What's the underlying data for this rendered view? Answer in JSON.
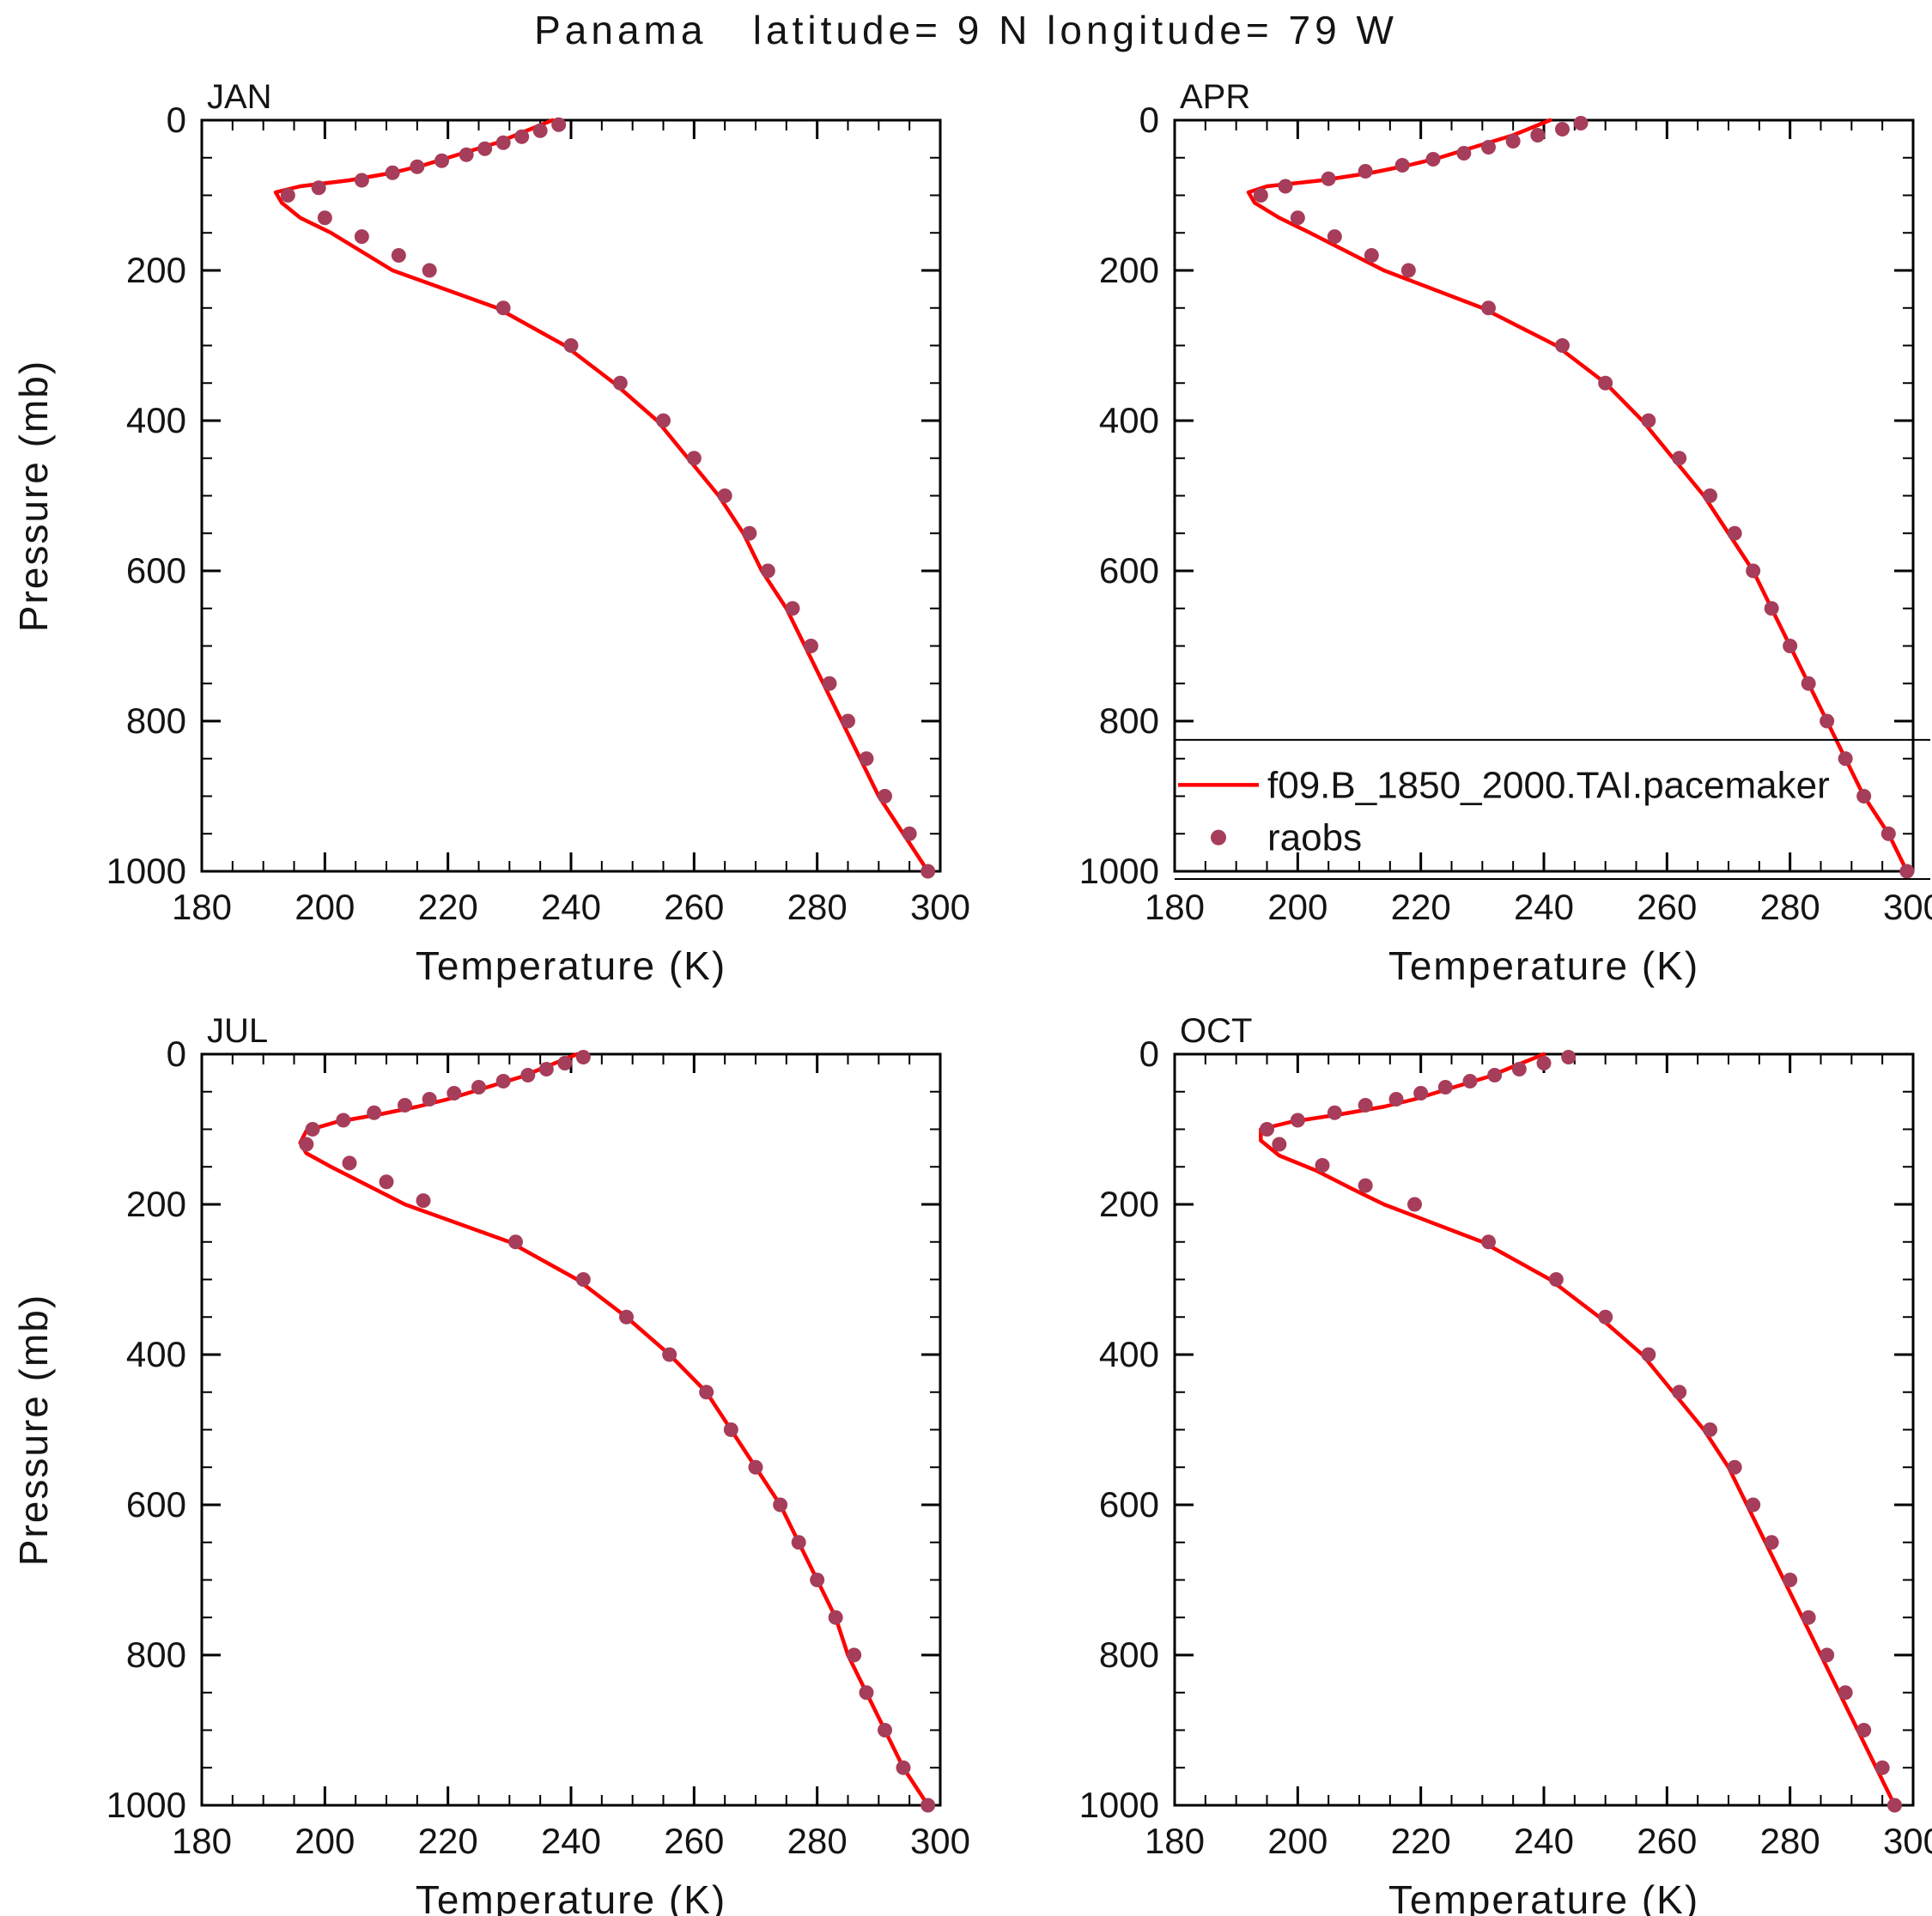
{
  "chart_data": {
    "type": "line+scatter",
    "title": "Panama   latitude= 9 N longitude= 79 W",
    "xlabel": "Temperature (K)",
    "ylabel": "Pressure (mb)",
    "xlim": [
      180,
      300
    ],
    "ylim": [
      0,
      1000
    ],
    "y_inverted": true,
    "xticks": [
      180,
      200,
      220,
      240,
      260,
      280,
      300
    ],
    "yticks": [
      0,
      200,
      400,
      600,
      800,
      1000
    ],
    "x_minor_step": 5,
    "y_minor_step": 50,
    "grid": false,
    "colors": {
      "model_line": "#ff0000",
      "obs_dot": "#a63d5a",
      "axis": "#000000",
      "text": "#141414"
    },
    "legend": {
      "panel": "APR",
      "position": "inside-bottom",
      "entries": [
        {
          "label": "f09.B_1850_2000.TAI.pacemaker",
          "type": "line",
          "color": "#ff0000"
        },
        {
          "label": "raobs",
          "type": "dot",
          "color": "#a63d5a"
        }
      ]
    },
    "panels": [
      {
        "month": "JAN",
        "model": {
          "p": [
            0,
            10,
            20,
            30,
            40,
            50,
            60,
            70,
            80,
            88,
            96,
            110,
            130,
            150,
            175,
            200,
            250,
            300,
            350,
            400,
            450,
            500,
            550,
            600,
            650,
            700,
            750,
            800,
            850,
            900,
            950,
            1000
          ],
          "t": [
            237,
            234,
            231,
            228,
            224,
            220,
            216,
            211,
            204,
            196,
            192,
            193,
            196,
            201,
            206,
            211,
            228,
            239,
            247,
            254,
            259,
            264,
            268,
            271,
            275,
            278,
            281,
            284,
            287,
            290,
            294,
            298
          ]
        },
        "obs": {
          "p": [
            6,
            14,
            22,
            30,
            38,
            46,
            54,
            62,
            70,
            80,
            90,
            100,
            130,
            155,
            180,
            200,
            250,
            300,
            350,
            400,
            450,
            500,
            550,
            600,
            650,
            700,
            750,
            800,
            850,
            900,
            950,
            1000
          ],
          "t": [
            238,
            235,
            232,
            229,
            226,
            223,
            219,
            215,
            211,
            206,
            199,
            194,
            200,
            206,
            212,
            217,
            229,
            240,
            248,
            255,
            260,
            265,
            269,
            272,
            276,
            279,
            282,
            285,
            288,
            291,
            295,
            298
          ]
        }
      },
      {
        "month": "APR",
        "model": {
          "p": [
            0,
            10,
            20,
            30,
            40,
            50,
            60,
            70,
            80,
            88,
            96,
            110,
            130,
            150,
            175,
            200,
            250,
            300,
            350,
            400,
            450,
            500,
            550,
            600,
            650,
            700,
            750,
            800,
            850,
            900,
            950,
            1000
          ],
          "t": [
            241,
            238,
            235,
            231,
            227,
            223,
            218,
            212,
            204,
            195,
            192,
            193,
            197,
            202,
            208,
            214,
            230,
            242,
            250,
            256,
            261,
            266,
            270,
            274,
            277,
            280,
            283,
            286,
            289,
            292,
            296,
            299
          ]
        },
        "obs": {
          "p": [
            4,
            12,
            20,
            28,
            36,
            44,
            52,
            60,
            68,
            78,
            88,
            100,
            130,
            155,
            180,
            200,
            250,
            300,
            350,
            400,
            450,
            500,
            550,
            600,
            650,
            700,
            750,
            800,
            850,
            900,
            950,
            1000
          ],
          "t": [
            246,
            243,
            239,
            235,
            231,
            227,
            222,
            217,
            211,
            205,
            198,
            194,
            200,
            206,
            212,
            218,
            231,
            243,
            250,
            257,
            262,
            267,
            271,
            274,
            277,
            280,
            283,
            286,
            289,
            292,
            296,
            299
          ]
        }
      },
      {
        "month": "JUL",
        "model": {
          "p": [
            0,
            10,
            20,
            30,
            40,
            50,
            60,
            70,
            80,
            90,
            102,
            118,
            132,
            150,
            175,
            200,
            250,
            300,
            350,
            400,
            450,
            500,
            550,
            600,
            650,
            700,
            750,
            800,
            850,
            900,
            950,
            1000
          ],
          "t": [
            241,
            238,
            235,
            232,
            228,
            224,
            220,
            215,
            209,
            202,
            197,
            196,
            197,
            201,
            207,
            213,
            230,
            241,
            249,
            256,
            262,
            266,
            270,
            274,
            277,
            280,
            283,
            285,
            288,
            291,
            294,
            298
          ]
        },
        "obs": {
          "p": [
            4,
            12,
            20,
            28,
            36,
            44,
            52,
            60,
            68,
            78,
            88,
            100,
            120,
            145,
            170,
            195,
            250,
            300,
            350,
            400,
            450,
            500,
            550,
            600,
            650,
            700,
            750,
            800,
            850,
            900,
            950,
            1000
          ],
          "t": [
            242,
            239,
            236,
            233,
            229,
            225,
            221,
            217,
            213,
            208,
            203,
            198,
            197,
            204,
            210,
            216,
            231,
            242,
            249,
            256,
            262,
            266,
            270,
            274,
            277,
            280,
            283,
            286,
            288,
            291,
            294,
            298
          ]
        }
      },
      {
        "month": "OCT",
        "model": {
          "p": [
            0,
            10,
            20,
            30,
            40,
            50,
            60,
            70,
            80,
            90,
            100,
            115,
            135,
            155,
            180,
            200,
            250,
            300,
            350,
            400,
            450,
            500,
            550,
            600,
            650,
            700,
            750,
            800,
            850,
            900,
            950,
            1000
          ],
          "t": [
            240,
            237,
            234,
            231,
            227,
            223,
            219,
            214,
            207,
            199,
            194,
            194,
            197,
            203,
            209,
            214,
            230,
            241,
            249,
            256,
            261,
            266,
            270,
            273,
            276,
            279,
            282,
            285,
            288,
            291,
            294,
            297
          ]
        },
        "obs": {
          "p": [
            4,
            12,
            20,
            28,
            36,
            44,
            52,
            60,
            68,
            78,
            88,
            100,
            120,
            148,
            175,
            200,
            250,
            300,
            350,
            400,
            450,
            500,
            550,
            600,
            650,
            700,
            750,
            800,
            850,
            900,
            950,
            1000
          ],
          "t": [
            244,
            240,
            236,
            232,
            228,
            224,
            220,
            216,
            211,
            206,
            200,
            195,
            197,
            204,
            211,
            219,
            231,
            242,
            250,
            257,
            262,
            267,
            271,
            274,
            277,
            280,
            283,
            286,
            289,
            292,
            295,
            297
          ]
        }
      }
    ]
  }
}
